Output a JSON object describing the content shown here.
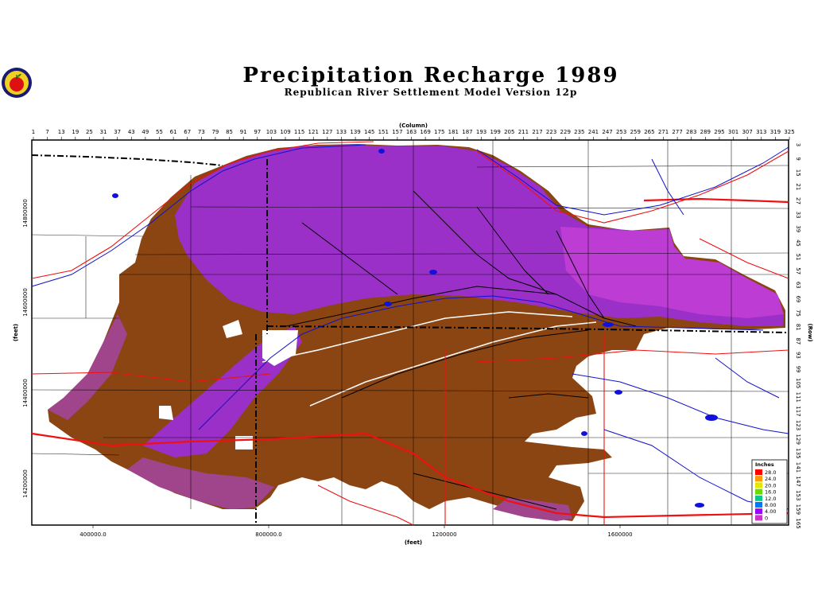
{
  "header": {
    "title": "Precipitation Recharge 1989",
    "subtitle": "Republican River Settlement Model Version 12p"
  },
  "logo": {
    "icon": "apple-seal-icon"
  },
  "axes": {
    "top_label": "(Column)",
    "right_label": "(Row)",
    "bottom_label": "(feet)",
    "left_label": "(feet)",
    "column_ticks": [
      "1",
      "7",
      "13",
      "19",
      "25",
      "31",
      "37",
      "43",
      "49",
      "55",
      "61",
      "67",
      "73",
      "79",
      "85",
      "91",
      "97",
      "103",
      "109",
      "115",
      "121",
      "127",
      "133",
      "139",
      "145",
      "151",
      "157",
      "163",
      "169",
      "175",
      "181",
      "187",
      "193",
      "199",
      "205",
      "211",
      "217",
      "223",
      "229",
      "235",
      "241",
      "247",
      "253",
      "259",
      "265",
      "271",
      "277",
      "283",
      "289",
      "295",
      "301",
      "307",
      "313",
      "319",
      "325"
    ],
    "row_ticks": [
      "3",
      "9",
      "15",
      "21",
      "27",
      "33",
      "39",
      "45",
      "51",
      "57",
      "63",
      "69",
      "75",
      "81",
      "87",
      "93",
      "99",
      "105",
      "111",
      "117",
      "123",
      "129",
      "135",
      "141",
      "147",
      "153",
      "159",
      "165"
    ],
    "x_ticks": [
      "400000.0",
      "800000.0",
      "1200000",
      "1600000"
    ],
    "y_ticks": [
      "14800000",
      "14600000",
      "14400000",
      "14200000"
    ]
  },
  "legend": {
    "title": "Inches",
    "items": [
      {
        "label": "28.0",
        "color": "#ff0000"
      },
      {
        "label": "24.0",
        "color": "#ff9900"
      },
      {
        "label": "20.0",
        "color": "#e6e600"
      },
      {
        "label": "16.0",
        "color": "#66dd00"
      },
      {
        "label": "12.0",
        "color": "#00cc88"
      },
      {
        "label": "8.00",
        "color": "#0077ff"
      },
      {
        "label": "4.00",
        "color": "#9900ff"
      },
      {
        "label": "0",
        "color": "#cc33cc"
      }
    ]
  },
  "colors": {
    "brown": "#8b4513",
    "purple": "#9a30c8",
    "magenta": "#c840d8",
    "mauve": "#a0448c",
    "roads": "#ee1111",
    "rivers": "#1111cc",
    "boundaries": "#000000"
  }
}
